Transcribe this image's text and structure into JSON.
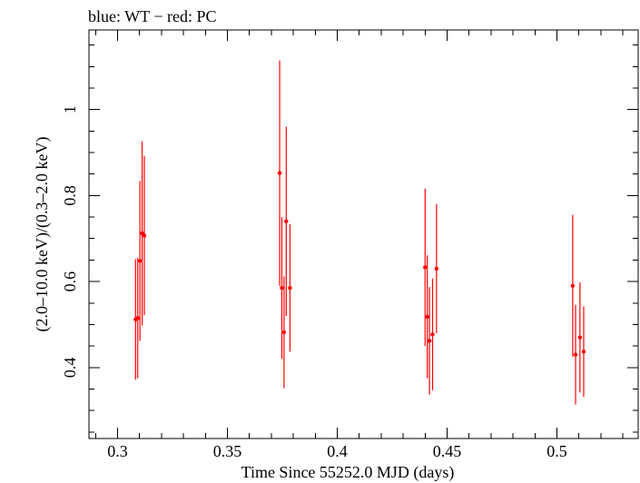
{
  "chart_data": {
    "type": "scatter",
    "title": "blue: WT − red: PC",
    "xlabel": "Time Since 55252.0 MJD (days)",
    "ylabel": "(2.0–10.0 keV)/(0.3–2.0 keV)",
    "xlim": [
      0.287,
      0.537
    ],
    "ylim": [
      0.235,
      1.185
    ],
    "xticks": [
      0.3,
      0.35,
      0.4,
      0.45,
      0.5
    ],
    "xtick_labels": [
      "0.3",
      "0.35",
      "0.4",
      "0.45",
      "0.5"
    ],
    "yticks": [
      0.4,
      0.6,
      0.8,
      1.0
    ],
    "ytick_labels": [
      "0.4",
      "0.6",
      "0.8",
      "1"
    ],
    "grid": false,
    "series": [
      {
        "name": "PC",
        "color": "#ff0000",
        "points": [
          {
            "x": 0.3082,
            "y": 0.512,
            "ylo": 0.372,
            "yhi": 0.652,
            "xerr": 0.0005
          },
          {
            "x": 0.3092,
            "y": 0.515,
            "ylo": 0.375,
            "yhi": 0.655,
            "xerr": 0.0005
          },
          {
            "x": 0.3102,
            "y": 0.648,
            "ylo": 0.462,
            "yhi": 0.834,
            "xerr": 0.0005
          },
          {
            "x": 0.3112,
            "y": 0.712,
            "ylo": 0.498,
            "yhi": 0.926,
            "xerr": 0.0005
          },
          {
            "x": 0.3122,
            "y": 0.707,
            "ylo": 0.522,
            "yhi": 0.892,
            "xerr": 0.0005
          },
          {
            "x": 0.3738,
            "y": 0.852,
            "ylo": 0.59,
            "yhi": 1.114,
            "xerr": 0.0005
          },
          {
            "x": 0.3748,
            "y": 0.585,
            "ylo": 0.42,
            "yhi": 0.75,
            "xerr": 0.0005
          },
          {
            "x": 0.3758,
            "y": 0.482,
            "ylo": 0.352,
            "yhi": 0.612,
            "xerr": 0.0005
          },
          {
            "x": 0.3768,
            "y": 0.74,
            "ylo": 0.52,
            "yhi": 0.96,
            "xerr": 0.0005
          },
          {
            "x": 0.3785,
            "y": 0.585,
            "ylo": 0.437,
            "yhi": 0.733,
            "xerr": 0.0006
          },
          {
            "x": 0.44,
            "y": 0.633,
            "ylo": 0.45,
            "yhi": 0.816,
            "xerr": 0.0005
          },
          {
            "x": 0.441,
            "y": 0.518,
            "ylo": 0.375,
            "yhi": 0.661,
            "xerr": 0.0005
          },
          {
            "x": 0.442,
            "y": 0.462,
            "ylo": 0.337,
            "yhi": 0.587,
            "xerr": 0.0005
          },
          {
            "x": 0.4434,
            "y": 0.477,
            "ylo": 0.347,
            "yhi": 0.607,
            "xerr": 0.0005
          },
          {
            "x": 0.4452,
            "y": 0.63,
            "ylo": 0.48,
            "yhi": 0.78,
            "xerr": 0.0007
          },
          {
            "x": 0.5072,
            "y": 0.59,
            "ylo": 0.425,
            "yhi": 0.755,
            "xerr": 0.0005
          },
          {
            "x": 0.5085,
            "y": 0.43,
            "ylo": 0.314,
            "yhi": 0.546,
            "xerr": 0.0006
          },
          {
            "x": 0.5105,
            "y": 0.47,
            "ylo": 0.342,
            "yhi": 0.598,
            "xerr": 0.0005
          },
          {
            "x": 0.5122,
            "y": 0.437,
            "ylo": 0.332,
            "yhi": 0.542,
            "xerr": 0.0006
          }
        ]
      }
    ]
  }
}
